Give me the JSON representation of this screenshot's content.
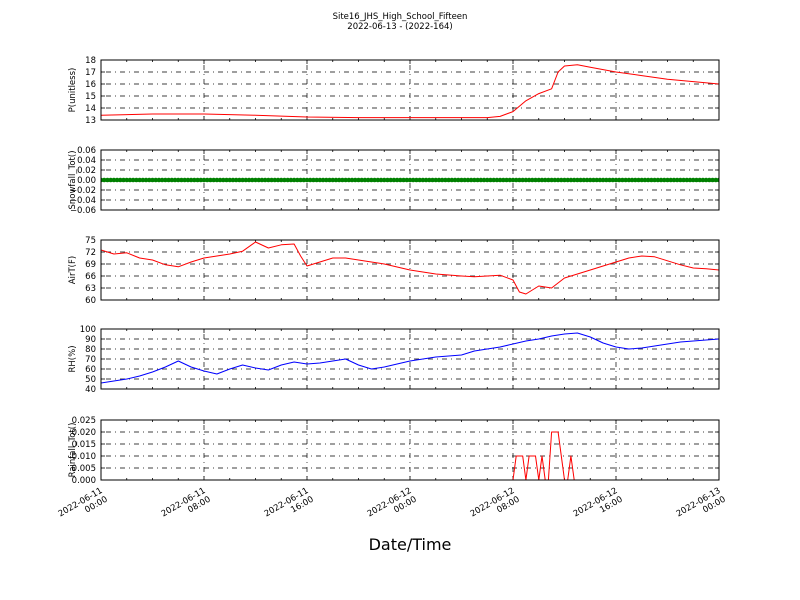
{
  "chart_data": {
    "type": "line",
    "title": "Site16_JHS_High_School_Fifteen",
    "subtitle": "2022-06-13 - (2022-164)",
    "xlabel": "Date/Time",
    "x_range": [
      "2022-06-11 00:00",
      "2022-06-13 00:00"
    ],
    "x_tick_labels": [
      [
        "2022-06-11",
        "00:00"
      ],
      [
        "2022-06-11",
        "08:00"
      ],
      [
        "2022-06-11",
        "16:00"
      ],
      [
        "2022-06-12",
        "00:00"
      ],
      [
        "2022-06-12",
        "08:00"
      ],
      [
        "2022-06-12",
        "16:00"
      ],
      [
        "2022-06-13",
        "00:00"
      ]
    ],
    "grid": true,
    "panels": [
      {
        "ylabel": "P(unitless)",
        "ylim": [
          13,
          18
        ],
        "yticks": [
          "13",
          "14",
          "15",
          "16",
          "17",
          "18"
        ],
        "color": "#ff0000",
        "style": "line",
        "x_hours": [
          0,
          4,
          8,
          12,
          16,
          20,
          24,
          28,
          30,
          31,
          32,
          33,
          34,
          35,
          35.5,
          36,
          37,
          38,
          40,
          42,
          44,
          46,
          48
        ],
        "values": [
          13.4,
          13.5,
          13.5,
          13.4,
          13.25,
          13.2,
          13.2,
          13.2,
          13.2,
          13.3,
          13.7,
          14.6,
          15.2,
          15.6,
          17.0,
          17.5,
          17.6,
          17.4,
          17.0,
          16.7,
          16.4,
          16.2,
          16.0
        ]
      },
      {
        "ylabel": "Snowfall_Tot()",
        "ylim": [
          -0.06,
          0.06
        ],
        "yticks": [
          "−0.06",
          "−0.04",
          "−0.02",
          "0.00",
          "0.02",
          "0.04",
          "0.06"
        ],
        "color": "#008000",
        "style": "markers",
        "x_hours": [
          0,
          48
        ],
        "values": [
          0.0,
          0.0
        ]
      },
      {
        "ylabel": "AirT(F)",
        "ylim": [
          60,
          75
        ],
        "yticks": [
          "60",
          "63",
          "66",
          "69",
          "72",
          "75"
        ],
        "color": "#ff0000",
        "style": "line",
        "x_hours": [
          0,
          1,
          2,
          3,
          4,
          5,
          6,
          7,
          8,
          9,
          10,
          11,
          12,
          13,
          14,
          15,
          15.5,
          16,
          17,
          18,
          19,
          20,
          21,
          22,
          24,
          26,
          28,
          29,
          30,
          31,
          32,
          32.5,
          33,
          34,
          35,
          36,
          37,
          38,
          39,
          40,
          41,
          42,
          43,
          44,
          45,
          46,
          47,
          48
        ],
        "values": [
          72.5,
          71.5,
          71.8,
          70.5,
          70.0,
          68.8,
          68.3,
          69.5,
          70.5,
          71.0,
          71.5,
          72.2,
          74.5,
          73.0,
          73.8,
          74.0,
          71.0,
          68.5,
          69.5,
          70.5,
          70.5,
          70.0,
          69.5,
          69.0,
          67.5,
          66.5,
          66.0,
          65.8,
          66.0,
          66.2,
          65.0,
          62.0,
          61.5,
          63.5,
          63.0,
          65.5,
          66.5,
          67.5,
          68.5,
          69.5,
          70.5,
          71.0,
          70.8,
          69.8,
          68.8,
          68.0,
          67.8,
          67.5
        ]
      },
      {
        "ylabel": "RH(%)",
        "ylim": [
          40,
          100
        ],
        "yticks": [
          "40",
          "50",
          "60",
          "70",
          "80",
          "90",
          "100"
        ],
        "color": "#0000ff",
        "style": "line",
        "x_hours": [
          0,
          1,
          2,
          3,
          4,
          5,
          6,
          7,
          8,
          9,
          10,
          11,
          12,
          13,
          14,
          15,
          16,
          17,
          18,
          19,
          20,
          21,
          22,
          23,
          24,
          26,
          28,
          29,
          30,
          31,
          32,
          33,
          34,
          35,
          36,
          37,
          38,
          39,
          40,
          41,
          42,
          43,
          44,
          45,
          46,
          47,
          48
        ],
        "values": [
          46,
          48,
          50,
          53,
          57,
          62,
          68,
          62,
          58,
          55,
          60,
          64,
          61,
          59,
          64,
          67,
          65,
          66,
          68,
          70,
          64,
          60,
          62,
          65,
          68,
          72,
          74,
          78,
          80,
          82,
          85,
          88,
          90,
          93,
          95,
          96,
          92,
          86,
          82,
          80,
          81,
          83,
          85,
          87,
          88,
          89,
          90
        ]
      },
      {
        "ylabel": "Rainfall_Tot()",
        "ylim": [
          0.0,
          0.025
        ],
        "yticks": [
          "0.000",
          "0.005",
          "0.010",
          "0.015",
          "0.020",
          "0.025"
        ],
        "color": "#ff0000",
        "style": "line",
        "x_hours": [
          0,
          32.0,
          32.25,
          32.5,
          32.75,
          33.0,
          33.25,
          33.5,
          33.75,
          34.0,
          34.25,
          34.5,
          34.75,
          35.0,
          35.25,
          35.5,
          35.75,
          36.0,
          36.25,
          36.5,
          36.75,
          37.0,
          37.25,
          48
        ],
        "values": [
          0,
          0,
          0.01,
          0.01,
          0.01,
          0,
          0.01,
          0.01,
          0.01,
          0,
          0.01,
          0,
          0,
          0.02,
          0.02,
          0.02,
          0.01,
          0,
          0,
          0.01,
          0,
          0,
          0,
          0
        ]
      }
    ]
  }
}
